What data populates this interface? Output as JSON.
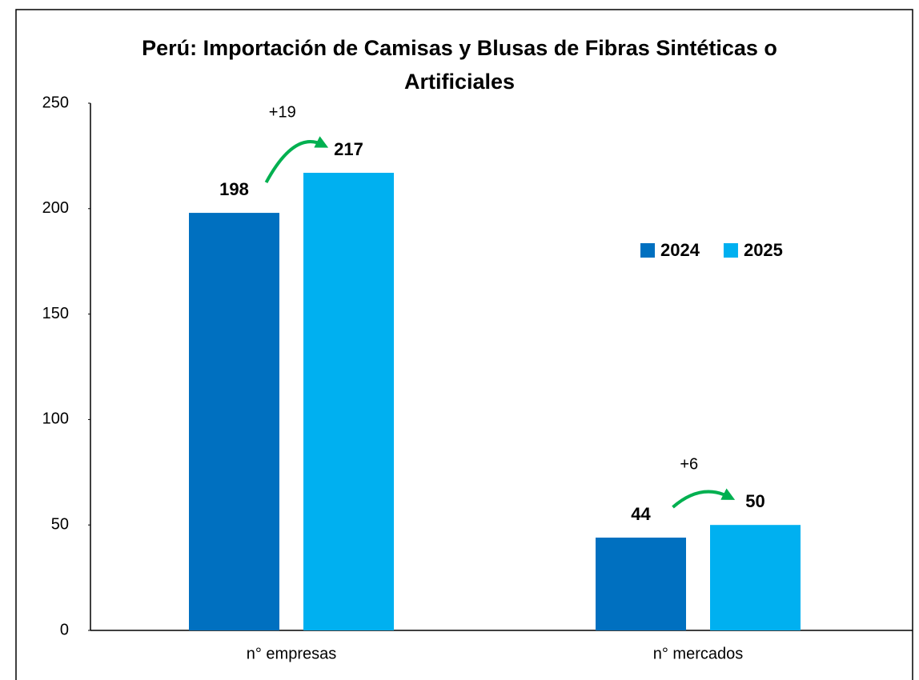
{
  "chart_data": {
    "type": "bar",
    "title": [
      "Perú: Importación de Camisas y Blusas de Fibras Sintéticas o",
      "Artificiales"
    ],
    "categories": [
      "n° empresas",
      "n° mercados"
    ],
    "series": [
      {
        "name": "2024",
        "color": "#0070c0",
        "values": [
          198,
          44
        ]
      },
      {
        "name": "2025",
        "color": "#00b0f0",
        "values": [
          217,
          50
        ]
      }
    ],
    "annotations": [
      "+19",
      "+6"
    ],
    "annotation_color": "#00b050",
    "ylim": [
      0,
      250
    ],
    "yticks": [
      0,
      50,
      100,
      150,
      200,
      250
    ],
    "grid": false,
    "legend": "right"
  }
}
